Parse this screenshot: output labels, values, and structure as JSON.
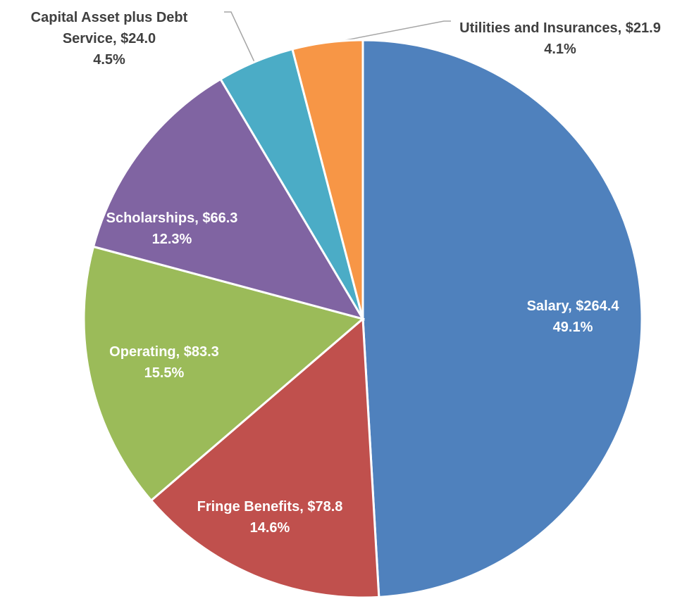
{
  "chart_data": {
    "type": "pie",
    "categories": [
      "Salary",
      "Fringe Benefits",
      "Operating",
      "Scholarships",
      "Capital Asset plus Debt Service",
      "Utilities and Insurances"
    ],
    "values": [
      264.4,
      78.8,
      83.3,
      66.3,
      24.0,
      21.9
    ],
    "value_labels": [
      "$264.4",
      "$78.8",
      "$83.3",
      "$66.3",
      "$24.0",
      "$21.9"
    ],
    "percent_labels": [
      "49.1%",
      "14.6%",
      "15.5%",
      "12.3%",
      "4.5%",
      "4.1%"
    ],
    "colors": [
      "#4f81bd",
      "#c0504d",
      "#9bbb59",
      "#8064a2",
      "#4bacc6",
      "#f79646"
    ]
  }
}
